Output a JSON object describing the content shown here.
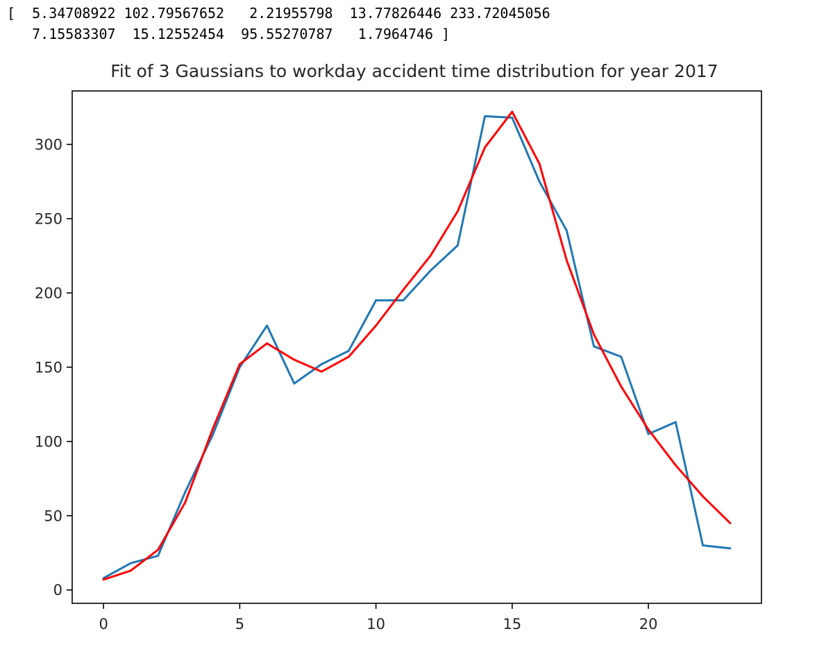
{
  "cell_output": {
    "lines": [
      "[  5.34708922 102.79567652   2.21955798  13.77826446 233.72045056",
      "   7.15583307  15.12552454  95.55270787   1.7964746 ]"
    ]
  },
  "chart_data": {
    "type": "line",
    "title": "Fit of 3 Gaussians to workday accident time distribution for year 2017",
    "xlabel": "",
    "ylabel": "",
    "xlim": [
      -1.15,
      24.15
    ],
    "ylim": [
      -9,
      336
    ],
    "x_ticks": [
      0,
      5,
      10,
      15,
      20
    ],
    "y_ticks": [
      0,
      50,
      100,
      150,
      200,
      250,
      300
    ],
    "grid": false,
    "x": [
      0,
      1,
      2,
      3,
      4,
      5,
      6,
      7,
      8,
      9,
      10,
      11,
      12,
      13,
      14,
      15,
      16,
      17,
      18,
      19,
      20,
      21,
      22,
      23
    ],
    "series": [
      {
        "color": "#1f77b4",
        "values": [
          8,
          18,
          23,
          66,
          104,
          150,
          178,
          139,
          152,
          161,
          195,
          195,
          215,
          232,
          319,
          318,
          275,
          242,
          164,
          157,
          105,
          113,
          30,
          28
        ]
      },
      {
        "color": "#ff0000",
        "values": [
          7,
          13,
          27,
          59,
          108,
          152,
          166,
          155,
          147,
          157,
          178,
          202,
          225,
          255,
          298,
          322,
          287,
          222,
          172,
          137,
          108,
          84,
          63,
          45
        ]
      }
    ]
  }
}
